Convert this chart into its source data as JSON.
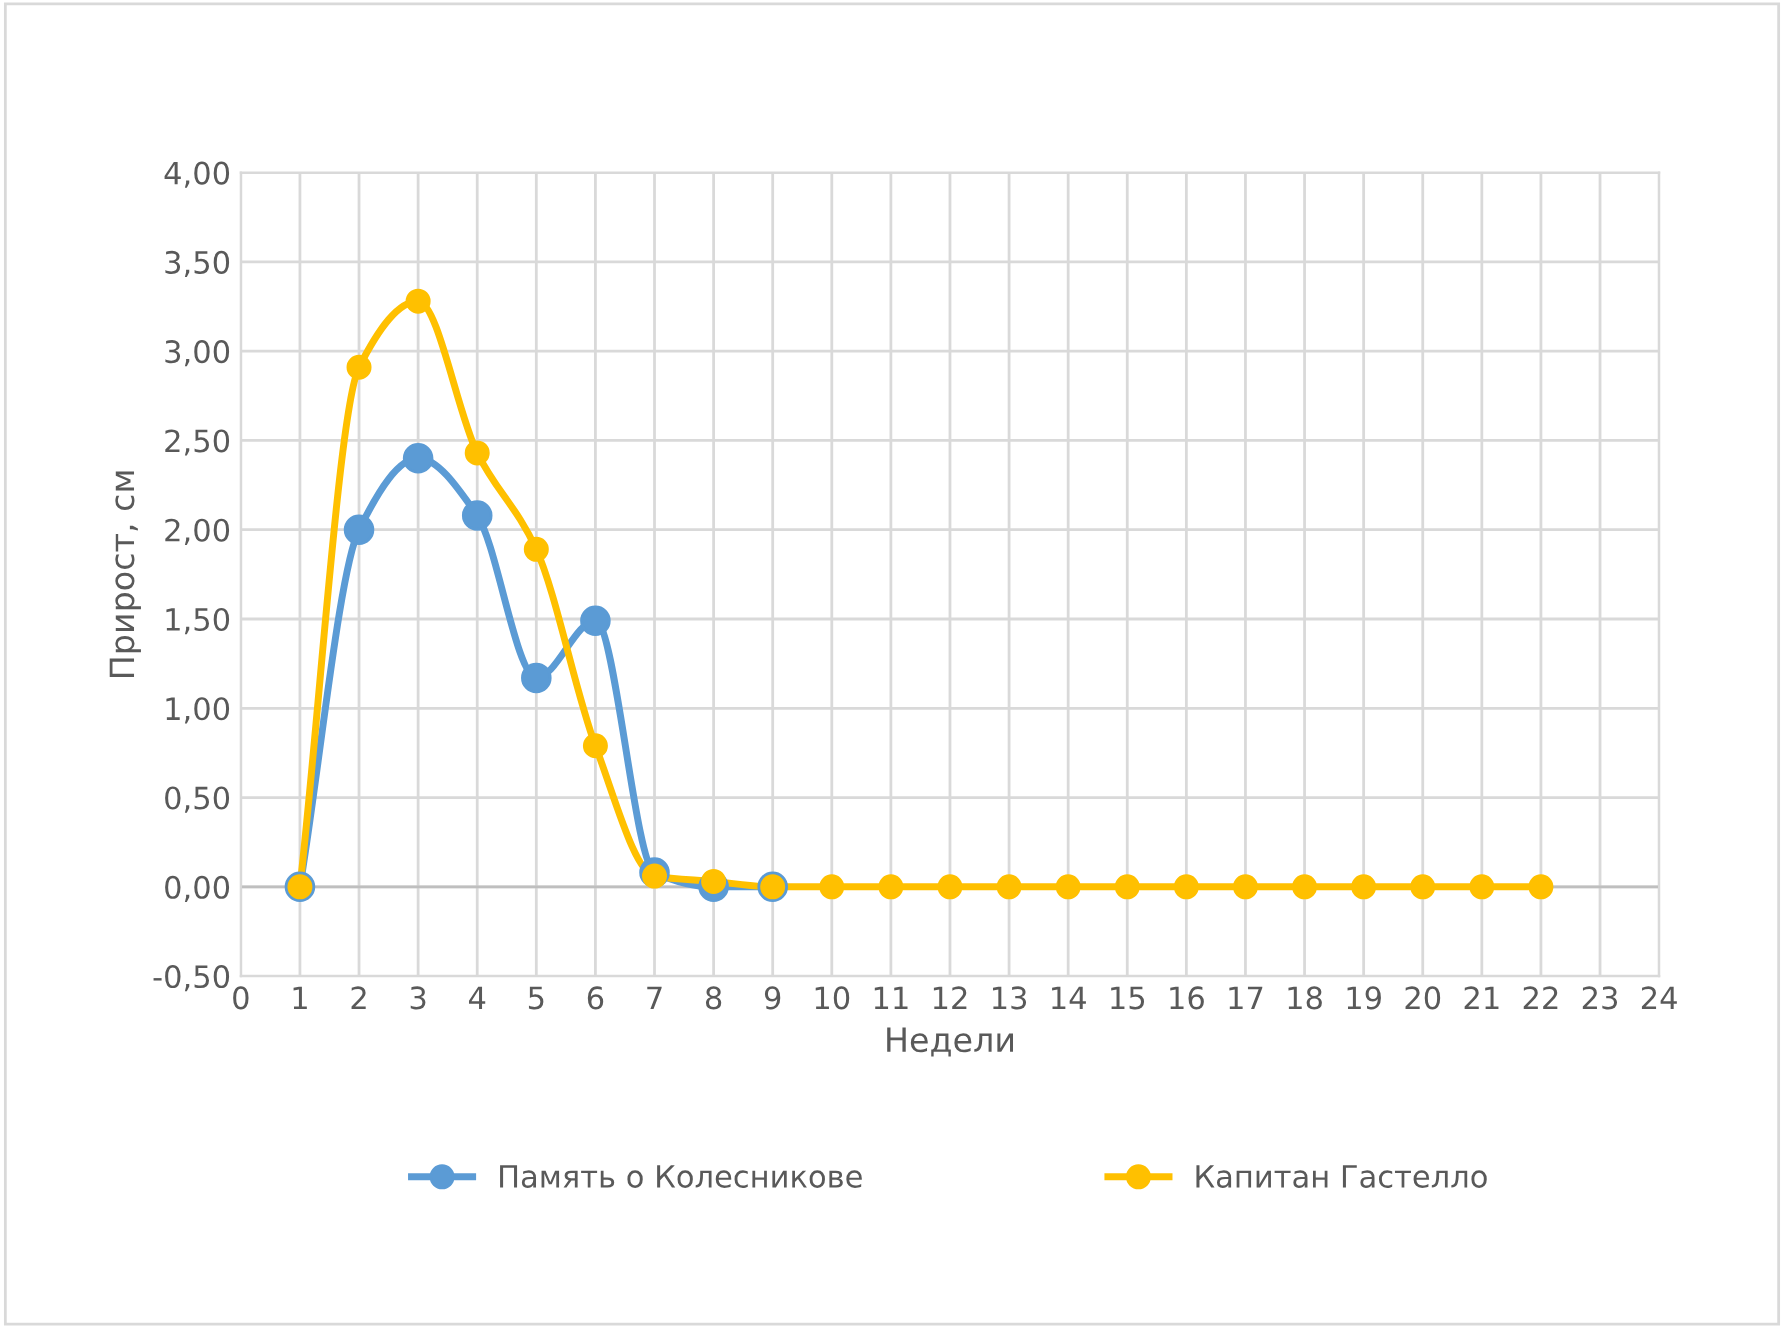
{
  "chart_data": {
    "type": "line",
    "xlabel": "Недели",
    "ylabel": "Прирост, см",
    "x": [
      1,
      2,
      3,
      4,
      5,
      6,
      7,
      8,
      9,
      10,
      11,
      12,
      13,
      14,
      15,
      16,
      17,
      18,
      19,
      20,
      21,
      22
    ],
    "series": [
      {
        "name": "Память о Колесникове",
        "color": "#5b9bd5",
        "values": [
          0,
          2.0,
          2.4,
          2.08,
          1.17,
          1.49,
          0.08,
          0,
          0,
          null,
          null,
          null,
          null,
          null,
          null,
          null,
          null,
          null,
          null,
          null,
          null,
          null
        ]
      },
      {
        "name": "Капитан Гастелло",
        "color": "#ffc000",
        "values": [
          0,
          2.91,
          3.28,
          2.43,
          1.89,
          0.79,
          0.06,
          0.03,
          0,
          0,
          0,
          0,
          0,
          0,
          0,
          0,
          0,
          0,
          0,
          0,
          0,
          0
        ]
      }
    ],
    "xlim": [
      0,
      24
    ],
    "xticks": [
      0,
      1,
      2,
      3,
      4,
      5,
      6,
      7,
      8,
      9,
      10,
      11,
      12,
      13,
      14,
      15,
      16,
      17,
      18,
      19,
      20,
      21,
      22,
      23,
      24
    ],
    "ylim": [
      -0.5,
      4
    ],
    "yticks": [
      {
        "value": -0.5,
        "label": "-0,50"
      },
      {
        "value": 0,
        "label": "0,00"
      },
      {
        "value": 0.5,
        "label": "0,50"
      },
      {
        "value": 1,
        "label": "1,00"
      },
      {
        "value": 1.5,
        "label": "1,50"
      },
      {
        "value": 2,
        "label": "2,00"
      },
      {
        "value": 2.5,
        "label": "2,50"
      },
      {
        "value": 3,
        "label": "3,00"
      },
      {
        "value": 3.5,
        "label": "3,50"
      },
      {
        "value": 4,
        "label": "4,00"
      }
    ],
    "grid": true,
    "legend": "bottom",
    "marker": "circle",
    "line_style": "solid"
  }
}
